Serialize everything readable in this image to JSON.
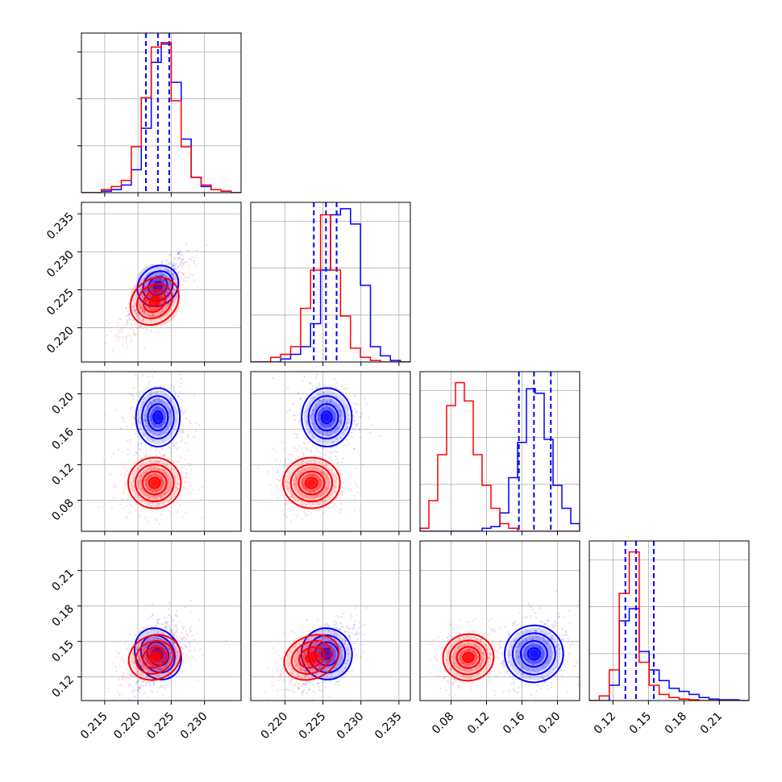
{
  "colors": {
    "series_a": "#0000ff",
    "series_b": "#ff0000",
    "grid": "#b0b0b0"
  },
  "chart_data": {
    "type": "scatter",
    "subtype": "corner-plot",
    "n_params": 4,
    "grid": true,
    "params": [
      {
        "range": [
          0.2115,
          0.2355
        ],
        "ticks": [
          0.215,
          0.22,
          0.225,
          0.23
        ],
        "tick_labels": [
          "0.215",
          "0.220",
          "0.225",
          "0.230"
        ]
      },
      {
        "range": [
          0.2155,
          0.2365
        ],
        "ticks": [
          0.22,
          0.225,
          0.23,
          0.235
        ],
        "tick_labels": [
          "0.220",
          "0.225",
          "0.230",
          "0.235"
        ]
      },
      {
        "range": [
          0.045,
          0.225
        ],
        "ticks": [
          0.08,
          0.12,
          0.16,
          0.2
        ],
        "tick_labels": [
          "0.08",
          "0.12",
          "0.16",
          "0.20"
        ]
      },
      {
        "range": [
          0.1,
          0.235
        ],
        "ticks": [
          0.12,
          0.15,
          0.18,
          0.21
        ],
        "tick_labels": [
          "0.12",
          "0.15",
          "0.18",
          "0.21"
        ]
      }
    ],
    "series": [
      {
        "color": "#0000ff",
        "means": [
          0.223,
          0.2255,
          0.1735,
          0.1395
        ],
        "sds": [
          0.0015,
          0.0015,
          0.015,
          0.011
        ],
        "quantiles": [
          [
            0.2212,
            0.223,
            0.2247
          ],
          [
            0.2238,
            0.2254,
            0.2268
          ],
          [
            0.1565,
            0.1735,
            0.1925
          ],
          [
            0.1305,
            0.1395,
            0.1545
          ]
        ],
        "hist": [
          [
            0,
            0,
            0.01,
            0.02,
            0.05,
            0.15,
            0.42,
            0.85,
            0.97,
            0.72,
            0.35,
            0.1,
            0.04,
            0.02,
            0.01,
            0
          ],
          [
            0,
            0,
            0,
            0.02,
            0.05,
            0.1,
            0.25,
            0.6,
            0.96,
            1.0,
            0.9,
            0.5,
            0.1,
            0.04,
            0.01,
            0
          ],
          [
            0,
            0,
            0,
            0,
            0,
            0,
            0,
            0.02,
            0.03,
            0.12,
            0.35,
            0.58,
            0.93,
            0.9,
            0.6,
            0.3,
            0.15,
            0.05
          ],
          [
            0,
            0,
            0.1,
            0.52,
            0.6,
            0.32,
            0.2,
            0.13,
            0.08,
            0.06,
            0.04,
            0.02,
            0.01,
            0.005,
            0.005,
            0
          ]
        ]
      },
      {
        "color": "#ff0000",
        "means": [
          0.2225,
          0.2235,
          0.0995,
          0.1365
        ],
        "sds": [
          0.0018,
          0.0017,
          0.013,
          0.009
        ],
        "quantiles": [],
        "hist": [
          [
            0,
            0,
            0.02,
            0.04,
            0.08,
            0.3,
            0.62,
            0.95,
            0.98,
            0.6,
            0.3,
            0.1,
            0.05,
            0.02,
            0.01,
            0
          ],
          [
            0,
            0,
            0.03,
            0.05,
            0.1,
            0.35,
            0.6,
            0.96,
            0.6,
            0.3,
            0.09,
            0.03,
            0.01,
            0,
            0,
            0
          ],
          [
            0.02,
            0.2,
            0.5,
            0.82,
            0.97,
            0.85,
            0.5,
            0.3,
            0.15,
            0.05,
            0.02,
            0,
            0,
            0,
            0,
            0,
            0,
            0
          ],
          [
            0,
            0.03,
            0.2,
            0.7,
            0.97,
            0.25,
            0.1,
            0.04,
            0.02,
            0.01,
            0.005,
            0,
            0,
            0,
            0,
            0
          ]
        ]
      }
    ],
    "correlations": {
      "0-1": 0.85,
      "0-2": 0.0,
      "1-2": 0.0,
      "0-3": 0.45,
      "1-3": 0.55,
      "2-3": 0.15
    }
  }
}
